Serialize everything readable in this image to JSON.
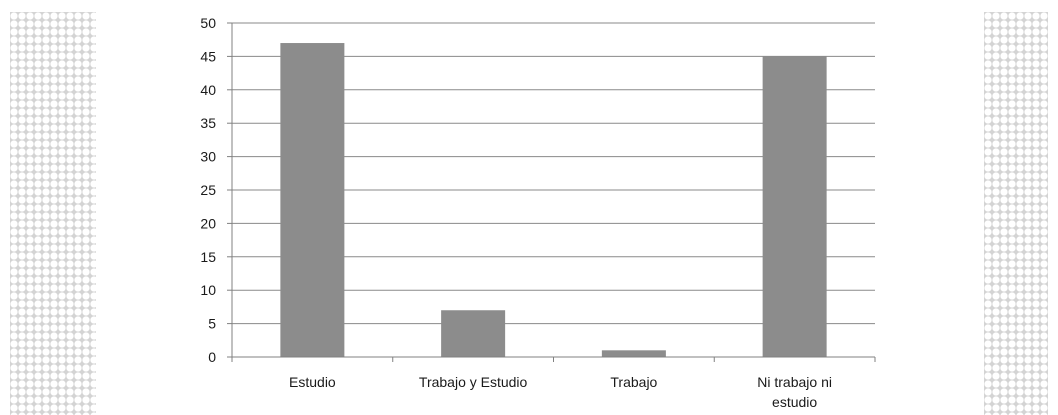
{
  "chart_data": {
    "type": "bar",
    "title": "",
    "xlabel": "",
    "ylabel": "",
    "categories": [
      [
        "Estudio"
      ],
      [
        "Trabajo y Estudio"
      ],
      [
        "Trabajo"
      ],
      [
        "Ni trabajo ni",
        "estudio"
      ]
    ],
    "values": [
      47,
      7,
      1,
      45
    ],
    "ylim": [
      0,
      50
    ],
    "yticks": [
      0,
      5,
      10,
      15,
      20,
      25,
      30,
      35,
      40,
      45,
      50
    ],
    "grid": true,
    "legend": "none",
    "colors": {
      "bar": "#8c8c8c",
      "grid": "#8a8a8a",
      "axis": "#808080"
    }
  },
  "decor": {
    "side_pattern": "white-circles-on-gray"
  }
}
